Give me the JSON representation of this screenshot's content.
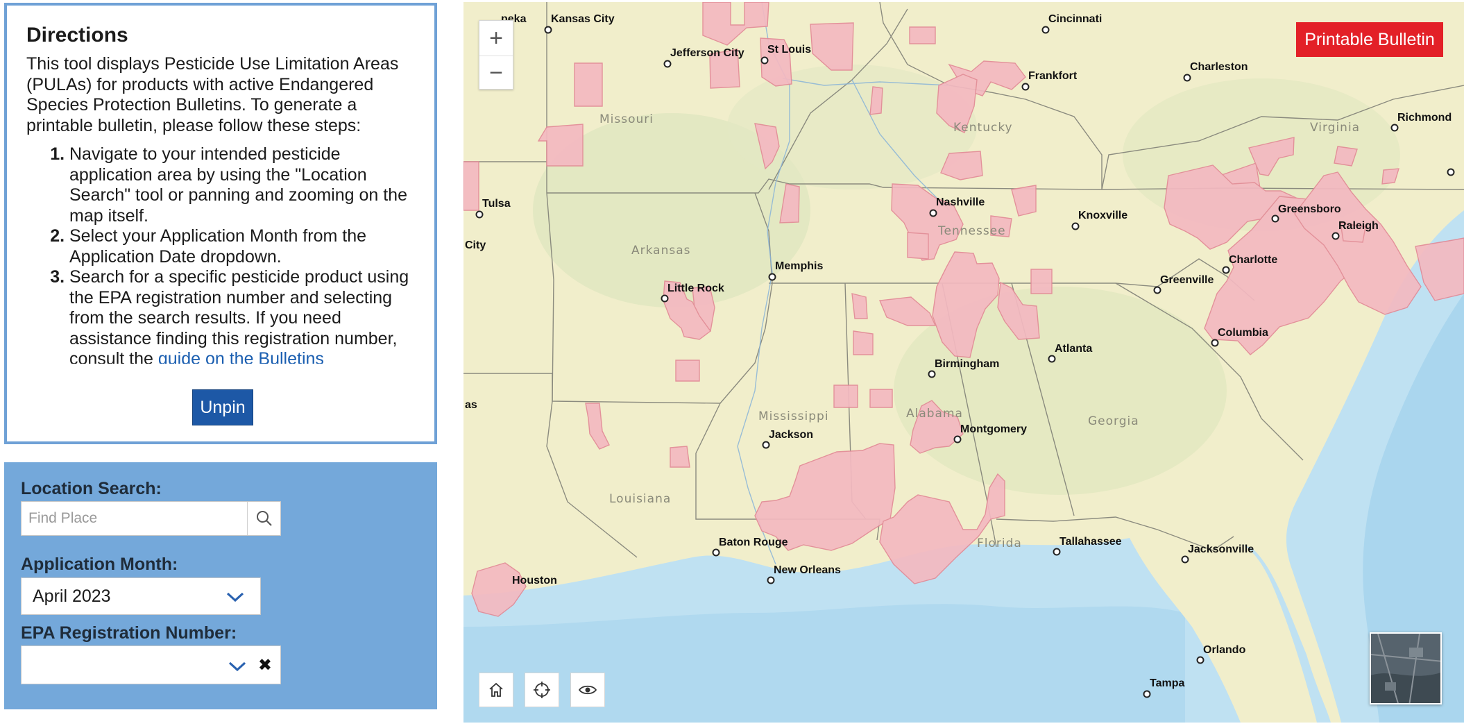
{
  "directions": {
    "title": "Directions",
    "intro": "This tool displays Pesticide Use Limitation Areas (PULAs) for products with active Endangered Species Protection Bulletins. To generate a printable bulletin, please follow these steps:",
    "steps": [
      "Navigate to your intended pesticide application area by using the \"Location Search\" tool or panning and zooming on the map itself.",
      "Select your Application Month from the Application Date dropdown.",
      "Search for a specific pesticide product using the EPA registration number and selecting from the search results. If you need assistance finding this registration number, consult the "
    ],
    "step3_link": "guide on the Bulletins",
    "unpin_label": "Unpin"
  },
  "filters": {
    "location_label": "Location Search:",
    "location_placeholder": "Find Place",
    "month_label": "Application Month:",
    "month_value": "April 2023",
    "epa_label": "EPA Registration Number:",
    "epa_value": ""
  },
  "map": {
    "print_label": "Printable Bulletin",
    "states": [
      "Missouri",
      "Kentucky",
      "Virginia",
      "Arkansas",
      "Tennessee",
      "Mississippi",
      "Alabama",
      "Georgia",
      "Louisiana",
      "Florida"
    ],
    "cities": [
      "Kansas City",
      "Jefferson City",
      "St Louis",
      "Cincinnati",
      "Charleston",
      "Frankfort",
      "Richmond",
      "Tulsa",
      "Nashville",
      "Knoxville",
      "Greensboro",
      "Raleigh",
      "Memphis",
      "Little Rock",
      "Charlotte",
      "Greenville",
      "Columbia",
      "Atlanta",
      "Birmingham",
      "Jackson",
      "Montgomery",
      "Baton Rouge",
      "New Orleans",
      "Tallahassee",
      "Jacksonville",
      "Houston",
      "Orlando",
      "Tampa",
      "peka",
      "City",
      "as"
    ],
    "colors": {
      "pula_fill": "#f4b9c1",
      "pula_stroke": "#e28a96",
      "land": "#f1eecb",
      "water": "#bfe1f2"
    }
  }
}
